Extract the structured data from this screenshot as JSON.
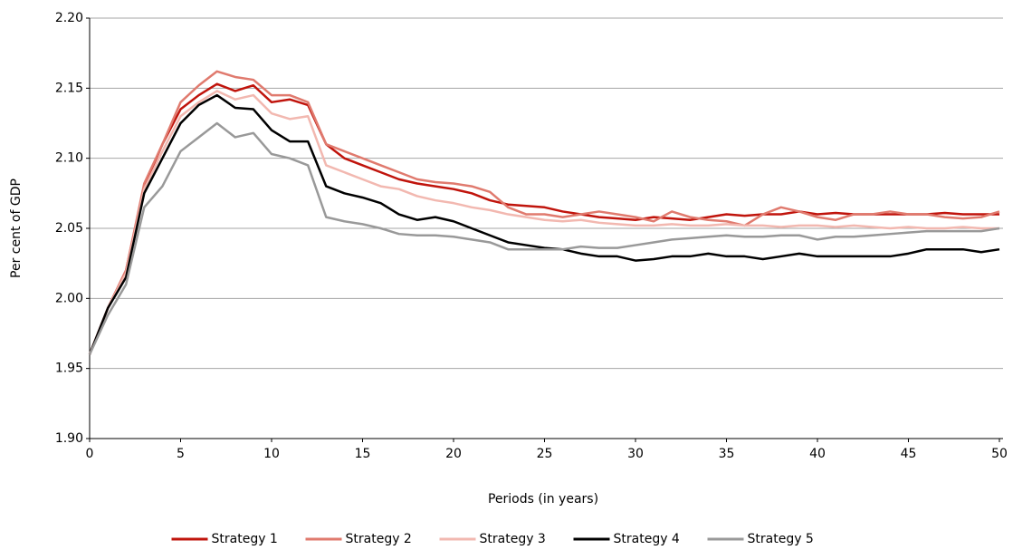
{
  "chart_data": {
    "type": "line",
    "xlabel": "Periods (in years)",
    "ylabel": "Per cent of GDP",
    "x": [
      0,
      1,
      2,
      3,
      4,
      5,
      6,
      7,
      8,
      9,
      10,
      11,
      12,
      13,
      14,
      15,
      16,
      17,
      18,
      19,
      20,
      21,
      22,
      23,
      24,
      25,
      26,
      27,
      28,
      29,
      30,
      31,
      32,
      33,
      34,
      35,
      36,
      37,
      38,
      39,
      40,
      41,
      42,
      43,
      44,
      45,
      46,
      47,
      48,
      49,
      50
    ],
    "series": [
      {
        "name": "Strategy 1",
        "color": "#c0140c",
        "values": [
          1.96,
          1.993,
          2.02,
          2.08,
          2.11,
          2.135,
          2.145,
          2.153,
          2.148,
          2.152,
          2.14,
          2.142,
          2.138,
          2.11,
          2.1,
          2.095,
          2.09,
          2.085,
          2.082,
          2.08,
          2.078,
          2.075,
          2.07,
          2.067,
          2.066,
          2.065,
          2.062,
          2.06,
          2.058,
          2.057,
          2.056,
          2.058,
          2.057,
          2.056,
          2.058,
          2.06,
          2.059,
          2.06,
          2.06,
          2.062,
          2.06,
          2.061,
          2.06,
          2.06,
          2.06,
          2.06,
          2.06,
          2.061,
          2.06,
          2.06,
          2.06
        ]
      },
      {
        "name": "Strategy 2",
        "color": "#e07a6e",
        "values": [
          1.96,
          1.993,
          2.02,
          2.082,
          2.11,
          2.14,
          2.152,
          2.162,
          2.158,
          2.156,
          2.145,
          2.145,
          2.14,
          2.11,
          2.105,
          2.1,
          2.095,
          2.09,
          2.085,
          2.083,
          2.082,
          2.08,
          2.076,
          2.065,
          2.06,
          2.06,
          2.058,
          2.06,
          2.062,
          2.06,
          2.058,
          2.055,
          2.062,
          2.058,
          2.056,
          2.055,
          2.052,
          2.06,
          2.065,
          2.062,
          2.058,
          2.056,
          2.06,
          2.06,
          2.062,
          2.06,
          2.06,
          2.058,
          2.057,
          2.058,
          2.062
        ]
      },
      {
        "name": "Strategy 3",
        "color": "#f2b8b0",
        "values": [
          1.96,
          1.993,
          2.018,
          2.078,
          2.105,
          2.13,
          2.14,
          2.148,
          2.142,
          2.145,
          2.132,
          2.128,
          2.13,
          2.095,
          2.09,
          2.085,
          2.08,
          2.078,
          2.073,
          2.07,
          2.068,
          2.065,
          2.063,
          2.06,
          2.058,
          2.056,
          2.055,
          2.056,
          2.054,
          2.053,
          2.052,
          2.052,
          2.053,
          2.052,
          2.052,
          2.053,
          2.052,
          2.052,
          2.051,
          2.052,
          2.052,
          2.051,
          2.052,
          2.051,
          2.05,
          2.051,
          2.05,
          2.05,
          2.051,
          2.05,
          2.05
        ]
      },
      {
        "name": "Strategy 4",
        "color": "#000000",
        "values": [
          1.96,
          1.993,
          2.015,
          2.075,
          2.1,
          2.125,
          2.138,
          2.145,
          2.136,
          2.135,
          2.12,
          2.112,
          2.112,
          2.08,
          2.075,
          2.072,
          2.068,
          2.06,
          2.056,
          2.058,
          2.055,
          2.05,
          2.045,
          2.04,
          2.038,
          2.036,
          2.035,
          2.032,
          2.03,
          2.03,
          2.027,
          2.028,
          2.03,
          2.03,
          2.032,
          2.03,
          2.03,
          2.028,
          2.03,
          2.032,
          2.03,
          2.03,
          2.03,
          2.03,
          2.03,
          2.032,
          2.035,
          2.035,
          2.035,
          2.033,
          2.035
        ]
      },
      {
        "name": "Strategy 5",
        "color": "#999999",
        "values": [
          1.96,
          1.988,
          2.01,
          2.065,
          2.08,
          2.105,
          2.115,
          2.125,
          2.115,
          2.118,
          2.103,
          2.1,
          2.095,
          2.058,
          2.055,
          2.053,
          2.05,
          2.046,
          2.045,
          2.045,
          2.044,
          2.042,
          2.04,
          2.035,
          2.035,
          2.035,
          2.035,
          2.037,
          2.036,
          2.036,
          2.038,
          2.04,
          2.042,
          2.043,
          2.044,
          2.045,
          2.044,
          2.044,
          2.045,
          2.045,
          2.042,
          2.044,
          2.044,
          2.045,
          2.046,
          2.047,
          2.048,
          2.048,
          2.048,
          2.048,
          2.05
        ]
      }
    ],
    "xlim": [
      0,
      50.2
    ],
    "xticks": [
      0,
      5,
      10,
      15,
      20,
      25,
      30,
      35,
      40,
      45,
      50
    ],
    "ylim": [
      1.9,
      2.2
    ],
    "yticks": [
      {
        "value": 1.9,
        "label": "1.90"
      },
      1.95,
      {
        "value": 2.0,
        "label": "2.00"
      },
      2.05,
      {
        "value": 2.1,
        "label": "2.10"
      },
      2.15,
      {
        "value": 2.2,
        "label": "2.20"
      }
    ],
    "grid": true,
    "legend": "bottom"
  }
}
